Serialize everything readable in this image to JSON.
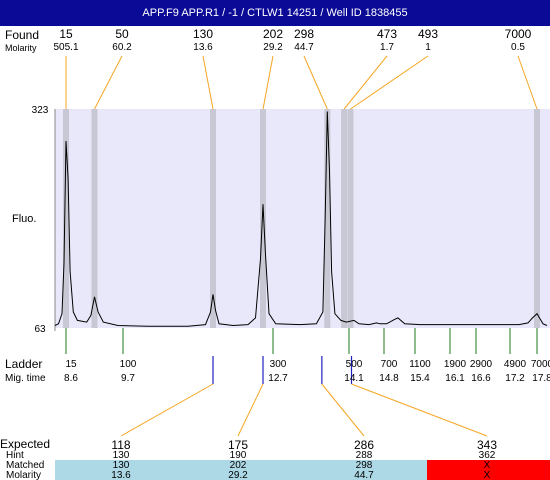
{
  "header": {
    "title": "APP.F9  APP.R1 / -1 / CTLW1 14251 / Well ID 1838455"
  },
  "labels": {
    "found": "Found",
    "molarity": "Molarity",
    "fluo": "Fluo.",
    "ladder": "Ladder",
    "mig_time": "Mig. time",
    "expected": "Expected",
    "hint": "Hint",
    "matched": "Matched",
    "molarity_bottom": "Molarity"
  },
  "colors": {
    "header_bg": "#0a0a96",
    "plot_bg": "#e8e8fa",
    "peak_band": "#c8c8d4",
    "found_line": "#f5a623",
    "ladder_tick": "#1f7a1f",
    "found_tick": "#2020c0",
    "match_bg": "#add8e6",
    "miss_bg": "#ff0000",
    "expected_highlight": "#e02020"
  },
  "chart_data": {
    "type": "line",
    "ylim": [
      63,
      323
    ],
    "y_ticks": [
      "323",
      "63"
    ],
    "ylabel": "Fluo.",
    "found": [
      {
        "size": "15",
        "molarity": "505.1",
        "time": 8.6
      },
      {
        "size": "50",
        "molarity": "60.2",
        "time": 9.15
      },
      {
        "size": "130",
        "molarity": "13.6",
        "time": 11.5
      },
      {
        "size": "202",
        "molarity": "29.2",
        "time": 12.5
      },
      {
        "size": "298",
        "molarity": "44.7",
        "time": 13.7
      },
      {
        "size": "473",
        "molarity": "1.7",
        "time": 14.01
      },
      {
        "size": "493",
        "molarity": "1",
        "time": 14.13
      },
      {
        "size": "7000",
        "molarity": "0.5",
        "time": 17.8
      }
    ],
    "ladder": [
      {
        "size": "15",
        "time": "8.6"
      },
      {
        "size": "100",
        "time": "9.7"
      },
      {
        "size": "300",
        "time": "12.7"
      },
      {
        "size": "500",
        "time": "14.1"
      },
      {
        "size": "700",
        "time": "14.8"
      },
      {
        "size": "1100",
        "time": "15.4"
      },
      {
        "size": "1900",
        "time": "16.1"
      },
      {
        "size": "2900",
        "time": "16.6"
      },
      {
        "size": "4900",
        "time": "17.2"
      },
      {
        "size": "7000",
        "time": "17.8"
      }
    ],
    "trace": [
      [
        8.38,
        66
      ],
      [
        8.45,
        68
      ],
      [
        8.52,
        80
      ],
      [
        8.56,
        140
      ],
      [
        8.6,
        285
      ],
      [
        8.64,
        240
      ],
      [
        8.68,
        130
      ],
      [
        8.74,
        82
      ],
      [
        8.82,
        72
      ],
      [
        9.0,
        70
      ],
      [
        9.08,
        78
      ],
      [
        9.15,
        100
      ],
      [
        9.22,
        82
      ],
      [
        9.32,
        70
      ],
      [
        9.6,
        66
      ],
      [
        10.2,
        65
      ],
      [
        11.0,
        65
      ],
      [
        11.35,
        67
      ],
      [
        11.45,
        82
      ],
      [
        11.5,
        103
      ],
      [
        11.55,
        84
      ],
      [
        11.62,
        68
      ],
      [
        11.9,
        66
      ],
      [
        12.2,
        67
      ],
      [
        12.35,
        75
      ],
      [
        12.45,
        145
      ],
      [
        12.5,
        210
      ],
      [
        12.55,
        150
      ],
      [
        12.62,
        80
      ],
      [
        12.75,
        68
      ],
      [
        13.2,
        67
      ],
      [
        13.5,
        68
      ],
      [
        13.62,
        82
      ],
      [
        13.66,
        190
      ],
      [
        13.7,
        320
      ],
      [
        13.74,
        250
      ],
      [
        13.78,
        130
      ],
      [
        13.84,
        80
      ],
      [
        13.95,
        72
      ],
      [
        14.05,
        70
      ],
      [
        14.2,
        72
      ],
      [
        14.3,
        68
      ],
      [
        14.5,
        67
      ],
      [
        14.65,
        69
      ],
      [
        14.72,
        68
      ],
      [
        14.85,
        68
      ],
      [
        15.0,
        73
      ],
      [
        15.07,
        75
      ],
      [
        15.2,
        68
      ],
      [
        15.5,
        67
      ],
      [
        16.0,
        67
      ],
      [
        16.5,
        67
      ],
      [
        17.0,
        67
      ],
      [
        17.4,
        67
      ],
      [
        17.6,
        69
      ],
      [
        17.7,
        75
      ],
      [
        17.8,
        80
      ],
      [
        17.86,
        74
      ],
      [
        17.92,
        68
      ],
      [
        18.0,
        66
      ]
    ],
    "expected": [
      {
        "size": "118",
        "hint": "130",
        "matched": "130",
        "molarity": "13.6",
        "match": true,
        "highlight": true
      },
      {
        "size": "175",
        "hint": "190",
        "matched": "202",
        "molarity": "29.2",
        "match": true,
        "highlight": false
      },
      {
        "size": "286",
        "hint": "288",
        "matched": "298",
        "molarity": "44.7",
        "match": true,
        "highlight": true
      },
      {
        "size": "343",
        "hint": "362",
        "matched": "X",
        "molarity": "X",
        "match": false,
        "highlight": false
      }
    ]
  }
}
